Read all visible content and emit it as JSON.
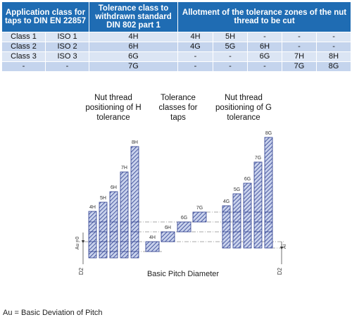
{
  "table": {
    "header": [
      "Application class for taps to DIN EN 22857",
      "Tolerance class to withdrawn standard DIN 802 part 1",
      "Allotment of the tolerance zones of the nut thread to be cut"
    ],
    "rows": [
      [
        "Class 1",
        "ISO 1",
        "4H",
        "4H",
        "5H",
        "-",
        "-",
        "-"
      ],
      [
        "Class 2",
        "ISO 2",
        "6H",
        "4G",
        "5G",
        "6H",
        "-",
        "-"
      ],
      [
        "Class 3",
        "ISO 3",
        "6G",
        "-",
        "-",
        "6G",
        "7H",
        "8H"
      ],
      [
        "-",
        "-",
        "7G",
        "-",
        "-",
        "-",
        "7G",
        "8G"
      ]
    ]
  },
  "diagram": {
    "headings": [
      "Nut thread positioning of H tolerance",
      "Tolerance classes for taps",
      "Nut thread positioning of G tolerance"
    ],
    "h_bars": [
      "4H",
      "5H",
      "6H",
      "7H",
      "8H"
    ],
    "tap_classes": [
      "4H",
      "6H",
      "6G",
      "7G"
    ],
    "g_bars": [
      "4G",
      "5G",
      "6G",
      "7G",
      "8G"
    ],
    "left_labels": [
      "Au =0",
      "D2"
    ],
    "right_labels": [
      "Ai",
      "D2"
    ],
    "axis_label": "Basic Pitch Diameter"
  },
  "footnote": "Au = Basic Deviation of Pitch"
}
